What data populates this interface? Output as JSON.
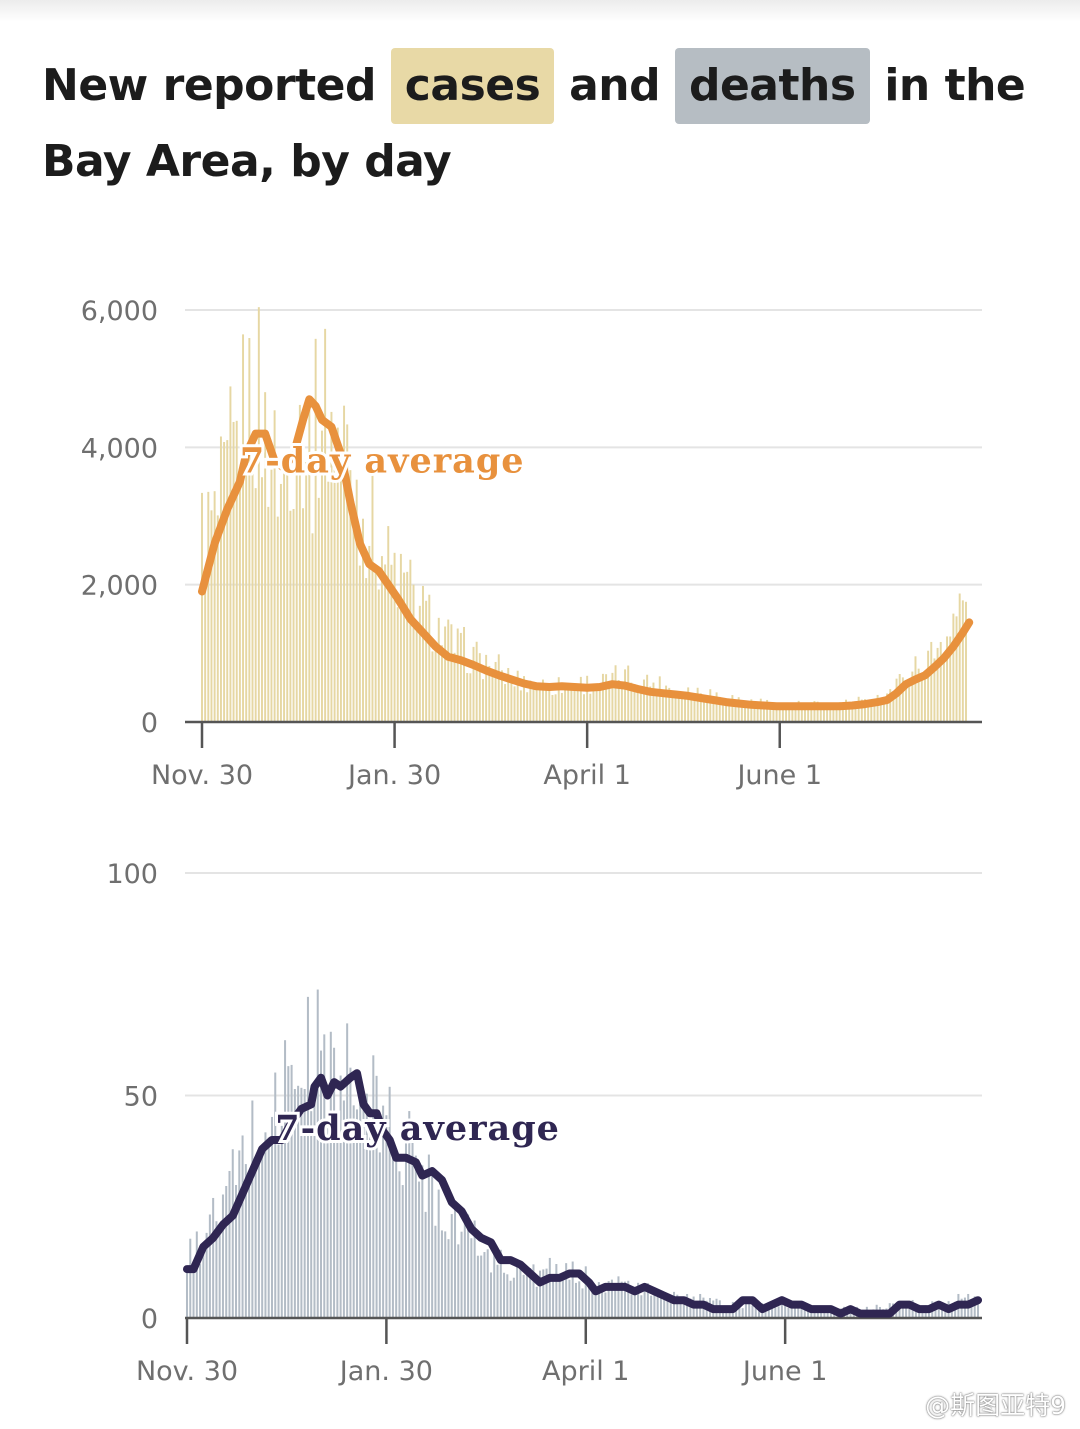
{
  "headline": {
    "part1": "New reported ",
    "cases": "cases",
    "part2": " and ",
    "deaths": "deaths",
    "part3": " in the Bay Area, by day"
  },
  "watermark": "@斯图亚特9",
  "colors": {
    "cases_bar": "#e6d7a3",
    "cases_line": "#e8913d",
    "deaths_bar": "#b3bcc6",
    "deaths_line": "#2f2652",
    "grid": "#e4e4e4",
    "axis": "#555555"
  },
  "chart_data": [
    {
      "type": "bar",
      "series": [
        {
          "role": "daily bars"
        },
        {
          "name": "7-day average",
          "role": "line"
        }
      ],
      "annotation": "7-day average",
      "x_ticks": [
        "Nov. 30",
        "Jan. 30",
        "April 1",
        "June 1"
      ],
      "x_tick_days": [
        0,
        61,
        122,
        183
      ],
      "x_range_days": [
        0,
        242
      ],
      "y_ticks": [
        "0",
        "2,000",
        "4,000",
        "6,000"
      ],
      "y_tick_values": [
        0,
        2000,
        4000,
        6000
      ],
      "ylim": [
        0,
        6000
      ],
      "grid": "horizontal",
      "daily_keypoints": [
        [
          0,
          2800
        ],
        [
          5,
          2900
        ],
        [
          10,
          3800
        ],
        [
          14,
          4700
        ],
        [
          17,
          4600
        ],
        [
          21,
          4100
        ],
        [
          25,
          3400
        ],
        [
          28,
          4200
        ],
        [
          32,
          4300
        ],
        [
          35,
          3800
        ],
        [
          38,
          4800
        ],
        [
          42,
          4200
        ],
        [
          46,
          4000
        ],
        [
          50,
          3100
        ],
        [
          54,
          2800
        ],
        [
          58,
          2400
        ],
        [
          62,
          2100
        ],
        [
          66,
          1900
        ],
        [
          70,
          1600
        ],
        [
          74,
          1400
        ],
        [
          78,
          1200
        ],
        [
          82,
          1050
        ],
        [
          86,
          950
        ],
        [
          90,
          850
        ],
        [
          95,
          700
        ],
        [
          100,
          600
        ],
        [
          105,
          560
        ],
        [
          110,
          520
        ],
        [
          115,
          540
        ],
        [
          120,
          560
        ],
        [
          125,
          560
        ],
        [
          130,
          600
        ],
        [
          135,
          660
        ],
        [
          140,
          600
        ],
        [
          145,
          540
        ],
        [
          150,
          480
        ],
        [
          155,
          450
        ],
        [
          160,
          430
        ],
        [
          165,
          380
        ],
        [
          170,
          320
        ],
        [
          175,
          280
        ],
        [
          180,
          260
        ],
        [
          185,
          240
        ],
        [
          190,
          250
        ],
        [
          195,
          240
        ],
        [
          200,
          250
        ],
        [
          205,
          260
        ],
        [
          210,
          280
        ],
        [
          213,
          320
        ],
        [
          216,
          380
        ],
        [
          219,
          500
        ],
        [
          222,
          600
        ],
        [
          226,
          780
        ],
        [
          230,
          900
        ],
        [
          233,
          1100
        ],
        [
          236,
          1300
        ],
        [
          239,
          1550
        ],
        [
          241,
          1700
        ],
        [
          242,
          1650
        ]
      ],
      "avg_keypoints": [
        [
          0,
          1900
        ],
        [
          4,
          2600
        ],
        [
          8,
          3100
        ],
        [
          12,
          3500
        ],
        [
          14,
          3900
        ],
        [
          17,
          4200
        ],
        [
          20,
          4200
        ],
        [
          23,
          3800
        ],
        [
          26,
          3700
        ],
        [
          29,
          3900
        ],
        [
          32,
          4400
        ],
        [
          34,
          4700
        ],
        [
          36,
          4600
        ],
        [
          38,
          4400
        ],
        [
          41,
          4300
        ],
        [
          44,
          3900
        ],
        [
          47,
          3200
        ],
        [
          50,
          2600
        ],
        [
          53,
          2300
        ],
        [
          56,
          2200
        ],
        [
          59,
          2000
        ],
        [
          62,
          1800
        ],
        [
          66,
          1500
        ],
        [
          70,
          1300
        ],
        [
          74,
          1100
        ],
        [
          78,
          950
        ],
        [
          82,
          900
        ],
        [
          86,
          830
        ],
        [
          90,
          750
        ],
        [
          94,
          680
        ],
        [
          98,
          620
        ],
        [
          102,
          560
        ],
        [
          106,
          520
        ],
        [
          110,
          510
        ],
        [
          114,
          520
        ],
        [
          118,
          510
        ],
        [
          122,
          500
        ],
        [
          126,
          510
        ],
        [
          130,
          550
        ],
        [
          134,
          530
        ],
        [
          138,
          480
        ],
        [
          142,
          440
        ],
        [
          146,
          420
        ],
        [
          150,
          400
        ],
        [
          154,
          380
        ],
        [
          158,
          350
        ],
        [
          162,
          320
        ],
        [
          166,
          290
        ],
        [
          170,
          270
        ],
        [
          174,
          250
        ],
        [
          178,
          240
        ],
        [
          182,
          230
        ],
        [
          186,
          230
        ],
        [
          190,
          230
        ],
        [
          194,
          230
        ],
        [
          198,
          230
        ],
        [
          202,
          230
        ],
        [
          206,
          240
        ],
        [
          210,
          260
        ],
        [
          214,
          290
        ],
        [
          217,
          320
        ],
        [
          220,
          420
        ],
        [
          223,
          550
        ],
        [
          226,
          620
        ],
        [
          229,
          680
        ],
        [
          232,
          800
        ],
        [
          235,
          930
        ],
        [
          238,
          1100
        ],
        [
          241,
          1300
        ],
        [
          243,
          1450
        ]
      ],
      "annotation_day": 12,
      "annotation_value": 3630
    },
    {
      "type": "bar",
      "series": [
        {
          "role": "daily bars"
        },
        {
          "name": "7-day average",
          "role": "line"
        }
      ],
      "annotation": "7-day average",
      "x_ticks": [
        "Nov. 30",
        "Jan. 30",
        "April 1",
        "June 1"
      ],
      "x_tick_days": [
        0,
        61,
        122,
        183
      ],
      "x_range_days": [
        0,
        242
      ],
      "y_ticks": [
        "0",
        "50",
        "100"
      ],
      "y_tick_values": [
        0,
        50,
        100
      ],
      "ylim": [
        0,
        100
      ],
      "grid": "horizontal",
      "daily_keypoints": [
        [
          0,
          12
        ],
        [
          5,
          18
        ],
        [
          10,
          24
        ],
        [
          15,
          32
        ],
        [
          20,
          40
        ],
        [
          25,
          45
        ],
        [
          30,
          52
        ],
        [
          35,
          56
        ],
        [
          40,
          60
        ],
        [
          45,
          54
        ],
        [
          50,
          52
        ],
        [
          55,
          48
        ],
        [
          60,
          45
        ],
        [
          65,
          40
        ],
        [
          70,
          36
        ],
        [
          75,
          30
        ],
        [
          80,
          24
        ],
        [
          85,
          20
        ],
        [
          90,
          16
        ],
        [
          95,
          13
        ],
        [
          100,
          11
        ],
        [
          105,
          10
        ],
        [
          110,
          10
        ],
        [
          115,
          10
        ],
        [
          120,
          9
        ],
        [
          125,
          8
        ],
        [
          130,
          8
        ],
        [
          135,
          7
        ],
        [
          140,
          6
        ],
        [
          145,
          5
        ],
        [
          150,
          5
        ],
        [
          155,
          4
        ],
        [
          160,
          4
        ],
        [
          165,
          3
        ],
        [
          170,
          3
        ],
        [
          175,
          3
        ],
        [
          180,
          3
        ],
        [
          185,
          3
        ],
        [
          190,
          2
        ],
        [
          195,
          2
        ],
        [
          200,
          2
        ],
        [
          205,
          2
        ],
        [
          210,
          2
        ],
        [
          215,
          3
        ],
        [
          220,
          3
        ],
        [
          225,
          3
        ],
        [
          230,
          3
        ],
        [
          235,
          4
        ],
        [
          240,
          4
        ],
        [
          242,
          4
        ]
      ],
      "avg_keypoints": [
        [
          0,
          11
        ],
        [
          2,
          11
        ],
        [
          5,
          16
        ],
        [
          8,
          18
        ],
        [
          11,
          21
        ],
        [
          14,
          23
        ],
        [
          17,
          28
        ],
        [
          20,
          33
        ],
        [
          23,
          38
        ],
        [
          26,
          40
        ],
        [
          29,
          40
        ],
        [
          32,
          44
        ],
        [
          35,
          47
        ],
        [
          38,
          48
        ],
        [
          39,
          52
        ],
        [
          41,
          54
        ],
        [
          43,
          50
        ],
        [
          45,
          53
        ],
        [
          47,
          52
        ],
        [
          50,
          54
        ],
        [
          52,
          55
        ],
        [
          54,
          48
        ],
        [
          56,
          46
        ],
        [
          58,
          46
        ],
        [
          60,
          42
        ],
        [
          62,
          40
        ],
        [
          64,
          36
        ],
        [
          67,
          36
        ],
        [
          70,
          35
        ],
        [
          72,
          32
        ],
        [
          75,
          33
        ],
        [
          78,
          31
        ],
        [
          81,
          26
        ],
        [
          84,
          24
        ],
        [
          87,
          20
        ],
        [
          90,
          18
        ],
        [
          93,
          17
        ],
        [
          96,
          13
        ],
        [
          99,
          13
        ],
        [
          102,
          12
        ],
        [
          105,
          10
        ],
        [
          108,
          8
        ],
        [
          111,
          9
        ],
        [
          114,
          9
        ],
        [
          117,
          10
        ],
        [
          120,
          10
        ],
        [
          123,
          8
        ],
        [
          125,
          6
        ],
        [
          128,
          7
        ],
        [
          131,
          7
        ],
        [
          134,
          7
        ],
        [
          137,
          6
        ],
        [
          140,
          7
        ],
        [
          143,
          6
        ],
        [
          146,
          5
        ],
        [
          149,
          4
        ],
        [
          152,
          4
        ],
        [
          155,
          3
        ],
        [
          158,
          3
        ],
        [
          161,
          2
        ],
        [
          164,
          2
        ],
        [
          167,
          2
        ],
        [
          170,
          4
        ],
        [
          173,
          4
        ],
        [
          176,
          2
        ],
        [
          179,
          3
        ],
        [
          182,
          4
        ],
        [
          185,
          3
        ],
        [
          188,
          3
        ],
        [
          191,
          2
        ],
        [
          194,
          2
        ],
        [
          197,
          2
        ],
        [
          200,
          1
        ],
        [
          203,
          2
        ],
        [
          206,
          1
        ],
        [
          209,
          1
        ],
        [
          212,
          1
        ],
        [
          215,
          1
        ],
        [
          218,
          3
        ],
        [
          221,
          3
        ],
        [
          224,
          2
        ],
        [
          227,
          2
        ],
        [
          230,
          3
        ],
        [
          233,
          2
        ],
        [
          236,
          3
        ],
        [
          239,
          3
        ],
        [
          242,
          4
        ]
      ],
      "annotation_day": 27,
      "annotation_value": 40
    }
  ]
}
